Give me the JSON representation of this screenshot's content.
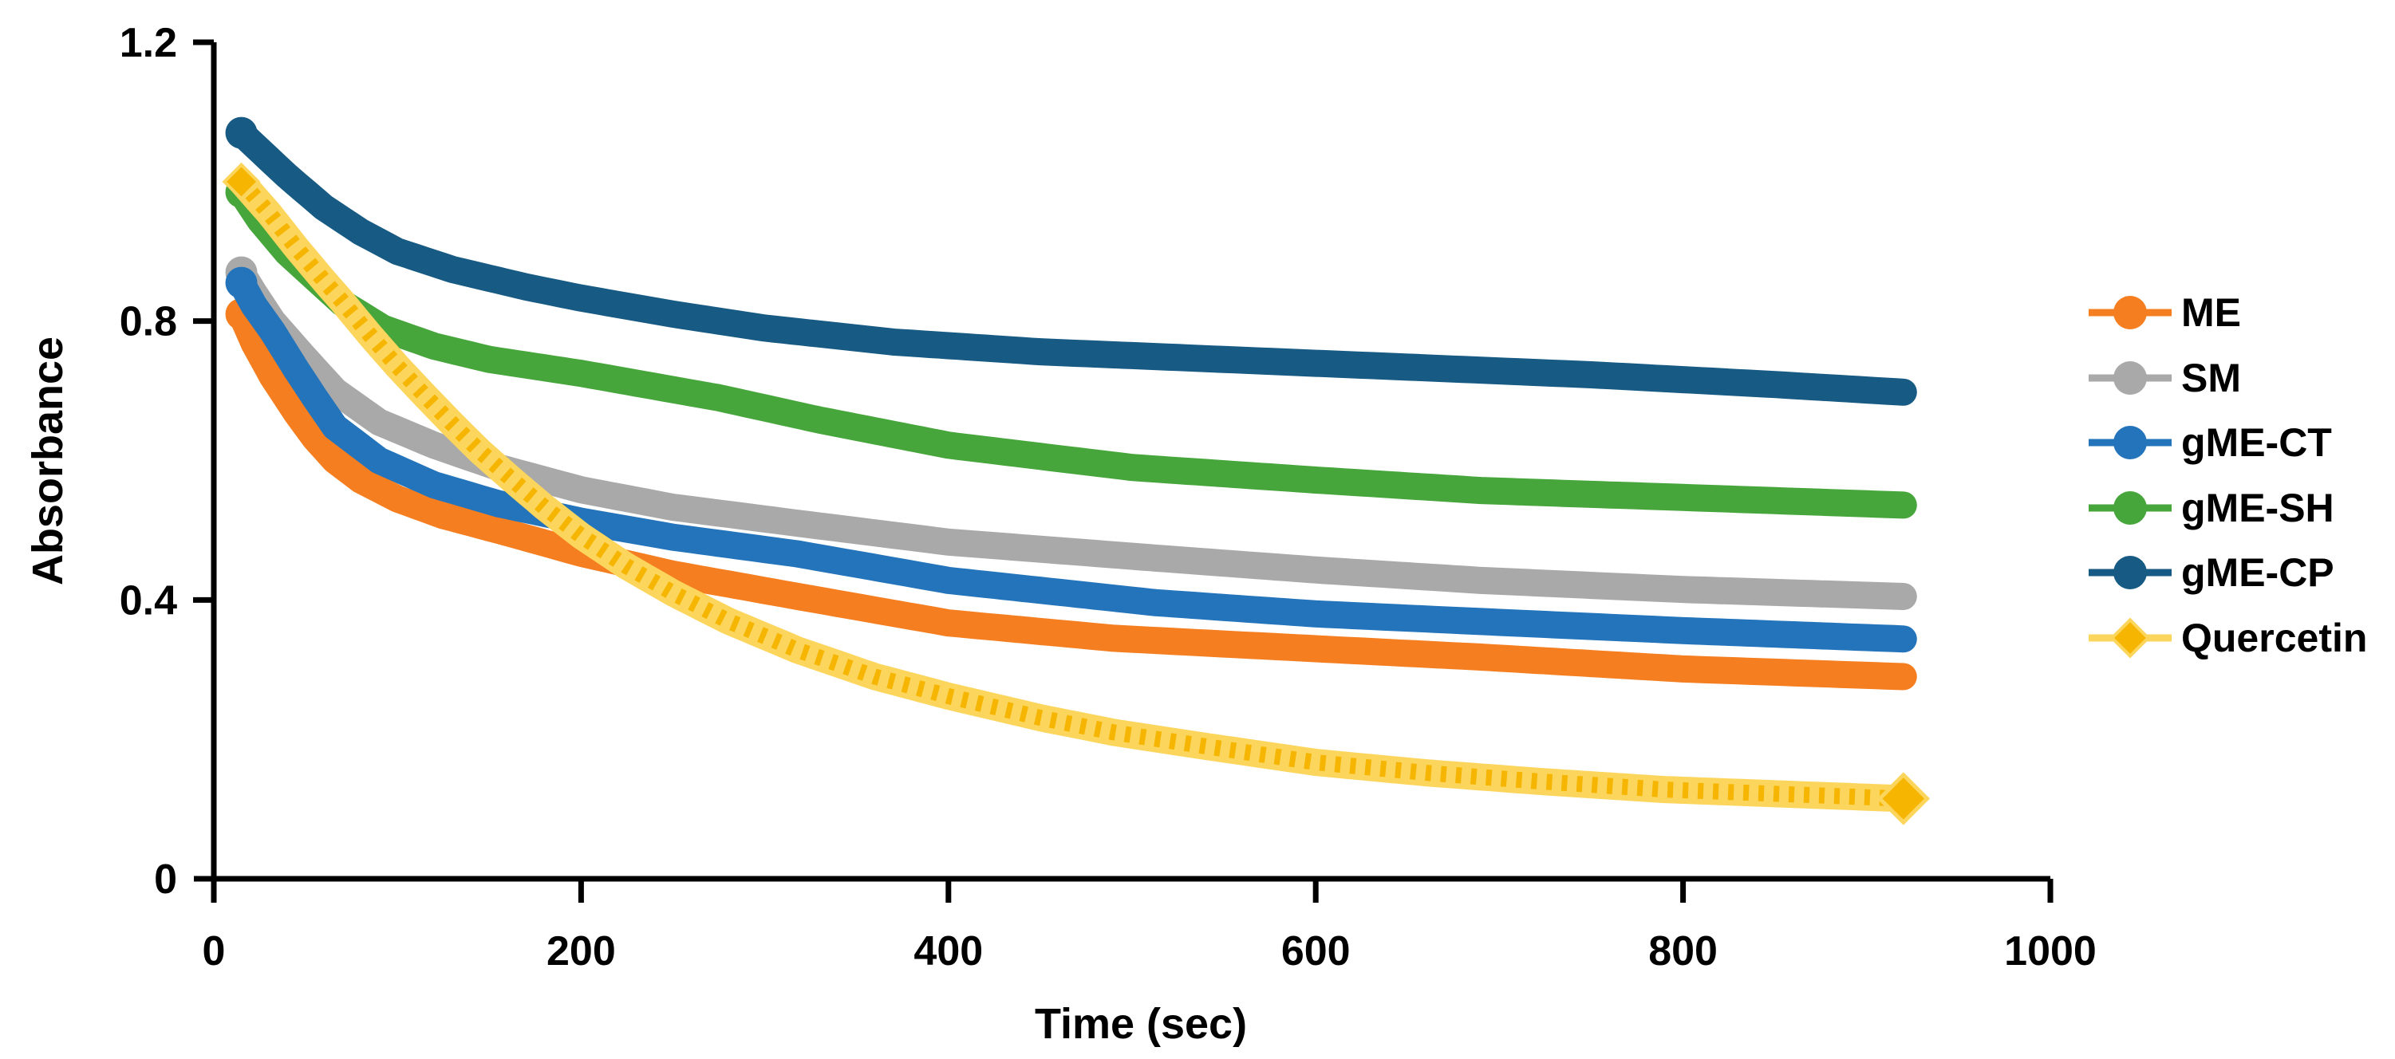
{
  "chart_data": {
    "type": "line",
    "title": "",
    "xlabel": "Time (sec)",
    "ylabel": "Absorbance",
    "xlim": [
      0,
      1000
    ],
    "ylim": [
      0,
      1.2
    ],
    "x_ticks": [
      0,
      200,
      400,
      600,
      800,
      1000
    ],
    "x_tick_labels": [
      "0",
      "200",
      "400",
      "600",
      "800",
      "1000"
    ],
    "y_ticks": [
      0,
      0.4,
      0.8,
      1.2
    ],
    "y_tick_labels": [
      "0",
      "0.4",
      "0.8",
      "1.2"
    ],
    "grid": false,
    "legend_position": "right",
    "sample_step_sec": 5,
    "series": [
      {
        "name": "ME",
        "color": "#F57E20",
        "marker": "circle",
        "points": [
          [
            15,
            0.81
          ],
          [
            22,
            0.768
          ],
          [
            32,
            0.72
          ],
          [
            45,
            0.668
          ],
          [
            55,
            0.632
          ],
          [
            66,
            0.6
          ],
          [
            80,
            0.572
          ],
          [
            100,
            0.545
          ],
          [
            125,
            0.521
          ],
          [
            155,
            0.5
          ],
          [
            200,
            0.467
          ],
          [
            250,
            0.437
          ],
          [
            318,
            0.405
          ],
          [
            400,
            0.367
          ],
          [
            490,
            0.345
          ],
          [
            600,
            0.33
          ],
          [
            690,
            0.318
          ],
          [
            800,
            0.301
          ],
          [
            920,
            0.29
          ]
        ]
      },
      {
        "name": "SM",
        "color": "#A9A9A9",
        "marker": "circle",
        "points": [
          [
            15,
            0.87
          ],
          [
            22,
            0.84
          ],
          [
            32,
            0.8
          ],
          [
            48,
            0.752
          ],
          [
            66,
            0.7
          ],
          [
            90,
            0.655
          ],
          [
            120,
            0.622
          ],
          [
            155,
            0.59
          ],
          [
            200,
            0.558
          ],
          [
            250,
            0.533
          ],
          [
            318,
            0.51
          ],
          [
            400,
            0.483
          ],
          [
            513,
            0.46
          ],
          [
            600,
            0.443
          ],
          [
            690,
            0.428
          ],
          [
            800,
            0.415
          ],
          [
            920,
            0.405
          ]
        ]
      },
      {
        "name": "gME-CT",
        "color": "#2374BB",
        "marker": "circle",
        "points": [
          [
            15,
            0.855
          ],
          [
            22,
            0.822
          ],
          [
            32,
            0.785
          ],
          [
            45,
            0.73
          ],
          [
            55,
            0.69
          ],
          [
            66,
            0.648
          ],
          [
            90,
            0.6
          ],
          [
            120,
            0.565
          ],
          [
            155,
            0.538
          ],
          [
            200,
            0.513
          ],
          [
            250,
            0.49
          ],
          [
            318,
            0.466
          ],
          [
            400,
            0.428
          ],
          [
            513,
            0.396
          ],
          [
            600,
            0.38
          ],
          [
            690,
            0.369
          ],
          [
            800,
            0.356
          ],
          [
            920,
            0.344
          ]
        ]
      },
      {
        "name": "gME-SH",
        "color": "#47A63B",
        "marker": "circle",
        "points": [
          [
            15,
            0.985
          ],
          [
            25,
            0.945
          ],
          [
            40,
            0.898
          ],
          [
            55,
            0.862
          ],
          [
            70,
            0.826
          ],
          [
            92,
            0.79
          ],
          [
            120,
            0.764
          ],
          [
            150,
            0.745
          ],
          [
            200,
            0.725
          ],
          [
            275,
            0.69
          ],
          [
            330,
            0.658
          ],
          [
            400,
            0.622
          ],
          [
            500,
            0.59
          ],
          [
            600,
            0.572
          ],
          [
            690,
            0.557
          ],
          [
            800,
            0.547
          ],
          [
            920,
            0.536
          ]
        ]
      },
      {
        "name": "gME-CP",
        "color": "#175A83",
        "marker": "circle",
        "points": [
          [
            15,
            1.07
          ],
          [
            25,
            1.045
          ],
          [
            40,
            1.008
          ],
          [
            60,
            0.963
          ],
          [
            80,
            0.928
          ],
          [
            100,
            0.9
          ],
          [
            130,
            0.874
          ],
          [
            170,
            0.849
          ],
          [
            200,
            0.833
          ],
          [
            250,
            0.81
          ],
          [
            300,
            0.79
          ],
          [
            370,
            0.77
          ],
          [
            450,
            0.756
          ],
          [
            550,
            0.745
          ],
          [
            650,
            0.734
          ],
          [
            750,
            0.723
          ],
          [
            850,
            0.709
          ],
          [
            920,
            0.698
          ]
        ]
      },
      {
        "name": "Quercetin",
        "color": "#FCD55C",
        "marker": "diamond",
        "marker_color": "#F6B500",
        "points": [
          [
            15,
            1.0
          ],
          [
            30,
            0.955
          ],
          [
            45,
            0.905
          ],
          [
            60,
            0.858
          ],
          [
            70,
            0.828
          ],
          [
            85,
            0.78
          ],
          [
            100,
            0.735
          ],
          [
            115,
            0.693
          ],
          [
            130,
            0.652
          ],
          [
            145,
            0.613
          ],
          [
            160,
            0.578
          ],
          [
            180,
            0.533
          ],
          [
            200,
            0.492
          ],
          [
            225,
            0.448
          ],
          [
            250,
            0.41
          ],
          [
            280,
            0.37
          ],
          [
            318,
            0.328
          ],
          [
            360,
            0.29
          ],
          [
            400,
            0.262
          ],
          [
            450,
            0.231
          ],
          [
            490,
            0.21
          ],
          [
            540,
            0.19
          ],
          [
            600,
            0.167
          ],
          [
            660,
            0.152
          ],
          [
            720,
            0.14
          ],
          [
            790,
            0.128
          ],
          [
            850,
            0.122
          ],
          [
            920,
            0.115
          ]
        ]
      }
    ]
  },
  "legend": {
    "items": [
      {
        "label": "ME"
      },
      {
        "label": "SM"
      },
      {
        "label": "gME-CT"
      },
      {
        "label": "gME-SH"
      },
      {
        "label": "gME-CP"
      },
      {
        "label": "Quercetin"
      }
    ]
  }
}
